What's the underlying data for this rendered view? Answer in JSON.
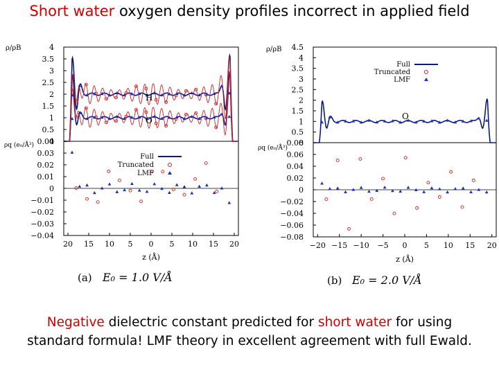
{
  "slide": {
    "title_red": "Short water",
    "title_rest": " oxygen density profiles incorrect in applied field",
    "caption_line1_red1": "Negative",
    "caption_line1_mid": " dielectric constant predicted for ",
    "caption_line1_red2": "short water",
    "caption_line1_end": " for using",
    "caption_line2": "standard formula!  LMF theory in excellent agreement with full Ewald."
  },
  "colors": {
    "full": "#0a1a7a",
    "truncated": "#d42020",
    "lmf": "#1830c0",
    "title_red": "#d10000"
  },
  "chart_data": [
    {
      "type": "line",
      "panel_label": "(a)",
      "field_label": "E₀ = 1.0 V/Å",
      "xlabel": "z (Å)",
      "x_ticks": [
        "20",
        "15",
        "10",
        "5",
        "0",
        "5",
        "10",
        "15",
        "20"
      ],
      "top": {
        "ylabel": "ρ/ρB",
        "ylim": [
          0,
          4
        ],
        "y_ticks": [
          "4",
          "3.5",
          "3",
          "2.5",
          "2",
          "1.5",
          "1",
          "0.5",
          "0"
        ],
        "annotations": [
          "H",
          "O"
        ],
        "series": [
          {
            "name": "Full",
            "style": "line",
            "profile": "H",
            "bulk": 2.0,
            "wall": 3.6
          },
          {
            "name": "Full",
            "style": "line",
            "profile": "O",
            "bulk": 1.0,
            "wall": 2.9
          },
          {
            "name": "Truncated",
            "style": "line+circle",
            "profile": "H",
            "bulk": 2.0,
            "wall": 3.2,
            "oscillation": 0.45
          },
          {
            "name": "Truncated",
            "style": "line+circle",
            "profile": "O",
            "bulk": 1.0,
            "wall": 2.6,
            "oscillation": 0.45
          },
          {
            "name": "LMF",
            "style": "triangle",
            "profile": "H",
            "bulk": 2.0
          },
          {
            "name": "LMF",
            "style": "triangle",
            "profile": "O",
            "bulk": 1.0
          }
        ]
      },
      "bottom": {
        "ylabel": "ρq (e₀/Å³)",
        "ylim": [
          -0.04,
          0.04
        ],
        "y_ticks": [
          "0.04",
          "0.03",
          "0.02",
          "0.01",
          "0",
          "−0.01",
          "−0.02",
          "−0.03",
          "−0.04"
        ],
        "legend": [
          "Full",
          "Truncated",
          "LMF"
        ],
        "legend_position": "top-left",
        "truncated_oscillation": 0.022,
        "wall_spikes": [
          0.035,
          -0.04
        ]
      }
    },
    {
      "type": "line",
      "panel_label": "(b)",
      "field_label": "E₀ = 2.0 V/Å",
      "xlabel": "z (Å)",
      "x_ticks": [
        "−20",
        "−15",
        "−10",
        "−5",
        "0",
        "5",
        "10",
        "15",
        "20"
      ],
      "top": {
        "ylabel": "ρ/ρB",
        "ylim": [
          0,
          4.5
        ],
        "y_ticks": [
          "4.5",
          "4",
          "3.5",
          "3",
          "2.5",
          "2",
          "1.5",
          "1",
          "0.5",
          "0"
        ],
        "annotations": [
          "O"
        ],
        "legend": [
          "Full",
          "Truncated",
          "LMF"
        ],
        "legend_position": "top-right",
        "series": [
          {
            "name": "Full",
            "style": "line",
            "profile": "O",
            "bulk": 1.0,
            "wall": 2.0
          },
          {
            "name": "LMF",
            "style": "triangle",
            "profile": "O",
            "bulk": 1.0
          }
        ]
      },
      "bottom": {
        "ylabel": "ρq (e₀/Å³)",
        "ylim": [
          -0.08,
          0.08
        ],
        "y_ticks": [
          "0.08",
          "0.06",
          "0.04",
          "0.02",
          "0",
          "−0.02",
          "−0.04",
          "−0.06",
          "−0.08"
        ],
        "truncated_oscillation": 0.08,
        "wall_spikes": [
          0.015,
          -0.01
        ]
      }
    }
  ]
}
